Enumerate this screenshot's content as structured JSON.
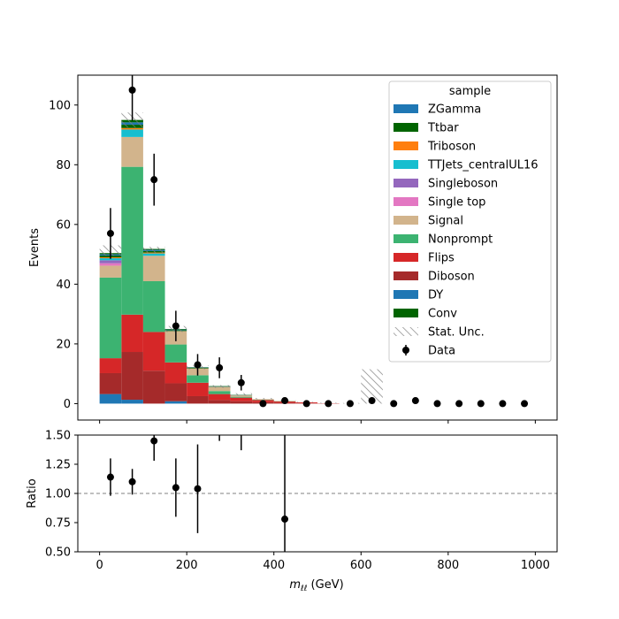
{
  "colors": {
    "ZGamma": "#1f77b4",
    "Ttbar": "#006400",
    "Triboson": "#ff7f0e",
    "TTJets_centralUL16": "#17becf",
    "Singleboson": "#9467bd",
    "Single top": "#e377c2",
    "Signal": "#d2b48c",
    "Nonprompt": "#3cb371",
    "Flips": "#d62728",
    "Diboson": "#a52a2a",
    "DY": "#1f77b4",
    "Conv": "#006400",
    "data": "#000000",
    "unc_hatch": "#808080",
    "ratio_line": "#808080"
  },
  "chart_data": [
    {
      "type": "bar",
      "subtype": "stacked-histogram",
      "xlabel": "m_ℓℓ (GeV)",
      "ylabel": "Events",
      "xlim": [
        -50,
        1050
      ],
      "ylim": [
        -5.5,
        110
      ],
      "xticks": [
        0,
        200,
        400,
        600,
        800,
        1000
      ],
      "yticks": [
        0,
        20,
        40,
        60,
        80,
        100
      ],
      "bin_edges": [
        0,
        50,
        100,
        150,
        200,
        250,
        300,
        350,
        400,
        450,
        500,
        550,
        600,
        650,
        700,
        750,
        800,
        850,
        900,
        950,
        1000
      ],
      "legend_title": "sample",
      "legend_position": "top-right",
      "legend": [
        "ZGamma",
        "Ttbar",
        "Triboson",
        "TTJets_centralUL16",
        "Singleboson",
        "Single top",
        "Signal",
        "Nonprompt",
        "Flips",
        "Diboson",
        "DY",
        "Conv",
        "Stat. Unc.",
        "Data"
      ],
      "series": [
        {
          "name": "DY",
          "values": [
            3.2,
            1.3,
            0,
            0.8,
            0,
            0,
            0,
            0,
            0,
            0,
            0,
            0,
            0,
            0,
            0,
            0,
            0,
            0,
            0,
            0
          ]
        },
        {
          "name": "Diboson",
          "values": [
            7,
            16,
            11,
            6,
            2.5,
            1.2,
            0.8,
            0.5,
            0.3,
            0.1,
            0,
            0,
            0,
            0,
            0,
            0,
            0,
            0,
            0,
            0
          ]
        },
        {
          "name": "Flips",
          "values": [
            5,
            12.5,
            13,
            7,
            4.5,
            2,
            1.2,
            0.7,
            0.4,
            0.3,
            0.1,
            0,
            0,
            0,
            0,
            0,
            0,
            0,
            0,
            0
          ]
        },
        {
          "name": "Nonprompt",
          "values": [
            27,
            49.5,
            17,
            6,
            2.5,
            1,
            0.3,
            0.1,
            0.1,
            0,
            0,
            0,
            0,
            0,
            0,
            0,
            0,
            0,
            0,
            0
          ]
        },
        {
          "name": "Signal",
          "values": [
            4,
            10,
            8.5,
            4.5,
            2.3,
            1.4,
            0.5,
            0.2,
            0.1,
            0,
            0,
            0,
            0,
            0,
            0,
            0,
            0,
            0,
            0,
            0
          ]
        },
        {
          "name": "Single top",
          "values": [
            0.8,
            0,
            0,
            0,
            0,
            0,
            0,
            0,
            0,
            0,
            0,
            0,
            0,
            0,
            0,
            0,
            0,
            0,
            0,
            0
          ]
        },
        {
          "name": "Singleboson",
          "values": [
            1,
            0,
            0,
            0,
            0,
            0,
            0,
            0,
            0,
            0,
            0,
            0,
            0,
            0,
            0,
            0,
            0,
            0,
            0,
            0
          ]
        },
        {
          "name": "TTJets_centralUL16",
          "values": [
            0.7,
            2.5,
            0.8,
            0,
            0,
            0,
            0,
            0,
            0,
            0,
            0,
            0,
            0,
            0,
            0,
            0,
            0,
            0,
            0,
            0
          ]
        },
        {
          "name": "Triboson",
          "values": [
            0.3,
            0.5,
            0.3,
            0,
            0,
            0,
            0,
            0,
            0,
            0,
            0,
            0,
            0,
            0,
            0,
            0,
            0,
            0,
            0,
            0
          ]
        },
        {
          "name": "Ttbar",
          "values": [
            0.6,
            1.1,
            0.5,
            0.3,
            0.2,
            0.1,
            0,
            0,
            0,
            0,
            0,
            0,
            0,
            0,
            0,
            0,
            0,
            0,
            0,
            0
          ]
        },
        {
          "name": "ZGamma",
          "values": [
            0.4,
            0.8,
            0.4,
            0.2,
            0.1,
            0.1,
            0.05,
            0,
            0,
            0,
            0,
            0,
            0,
            0,
            0,
            0,
            0,
            0,
            0,
            0
          ]
        },
        {
          "name": "Conv",
          "values": [
            0.4,
            0.8,
            0.3,
            0.2,
            0.1,
            0.1,
            0.05,
            0,
            0,
            0,
            0,
            0,
            0,
            0,
            0,
            0,
            0,
            0,
            0,
            0
          ]
        }
      ],
      "stat_unc": [
        [
          49.5,
          53
        ],
        [
          92.5,
          97.5
        ],
        [
          50.5,
          52.5
        ],
        [
          24,
          26
        ],
        [
          11.5,
          12.8
        ],
        [
          5.3,
          6.2
        ],
        [
          2.7,
          3.5
        ],
        [
          1.5,
          1.9
        ],
        [
          0.8,
          1.1
        ],
        [
          0.3,
          0.6
        ],
        [
          0,
          0.3
        ],
        [
          0,
          0.2
        ],
        [
          0,
          11.5
        ],
        [
          0,
          0
        ],
        [
          0,
          0
        ],
        [
          0,
          0
        ],
        [
          0,
          0
        ],
        [
          0,
          0
        ],
        [
          0,
          0
        ],
        [
          0,
          0
        ]
      ],
      "data": {
        "name": "Data",
        "x": [
          25,
          75,
          125,
          175,
          225,
          275,
          325,
          375,
          425,
          475,
          525,
          575,
          625,
          675,
          725,
          775,
          825,
          875,
          925,
          975
        ],
        "y": [
          57,
          105,
          75,
          26,
          13,
          12,
          7,
          0,
          1,
          0,
          0,
          0,
          1,
          0,
          1,
          0,
          0,
          0,
          0,
          0
        ],
        "err": [
          8.5,
          10.2,
          8.7,
          5.1,
          3.6,
          3.5,
          2.6,
          0,
          1,
          0,
          0,
          0,
          1,
          0,
          1,
          0,
          0,
          0,
          0,
          0
        ]
      }
    },
    {
      "type": "scatter",
      "subtype": "ratio-panel",
      "xlabel": "m_ℓℓ (GeV)",
      "ylabel": "Ratio",
      "xlim": [
        -50,
        1050
      ],
      "ylim": [
        0.5,
        1.5
      ],
      "xticks": [
        0,
        200,
        400,
        600,
        800,
        1000
      ],
      "yticks": [
        0.5,
        0.75,
        1.0,
        1.25,
        1.5
      ],
      "reference_line": 1.0,
      "points": {
        "x": [
          25,
          75,
          125,
          175,
          225,
          425
        ],
        "y": [
          1.14,
          1.1,
          1.45,
          1.05,
          1.04,
          0.78
        ],
        "err": [
          0.16,
          0.11,
          0.17,
          0.25,
          0.38,
          0.8
        ]
      },
      "offscale_bars": {
        "x": [
          275,
          325
        ],
        "y_low": [
          1.45,
          1.37
        ]
      }
    }
  ],
  "main_ytick_labels": [
    "0",
    "20",
    "40",
    "60",
    "80",
    "100"
  ],
  "ratio_ytick_labels": [
    "0.50",
    "0.75",
    "1.00",
    "1.25",
    "1.50"
  ],
  "xtick_labels": [
    "0",
    "200",
    "400",
    "600",
    "800",
    "1000"
  ]
}
